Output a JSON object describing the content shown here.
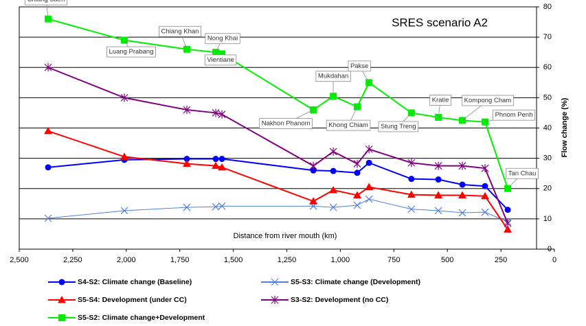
{
  "chart_data": {
    "type": "line",
    "title": "SRES scenario A2",
    "x_label": "Distance from river mouth (km)",
    "y_label": "Flow change (%)",
    "x": [
      2365,
      2009,
      1717,
      1582,
      1553,
      1126,
      1033,
      921,
      866,
      668,
      542,
      430,
      324,
      218
    ],
    "xlim": [
      2500,
      0
    ],
    "xticks": [
      {
        "value": 2500,
        "label": "2,500"
      },
      {
        "value": 2250,
        "label": "2,250"
      },
      {
        "value": 2000,
        "label": "2,000"
      },
      {
        "value": 1750,
        "label": "1,750"
      },
      {
        "value": 1500,
        "label": "1,500"
      },
      {
        "value": 1250,
        "label": "1,250"
      },
      {
        "value": 1000,
        "label": "1,000"
      },
      750,
      500,
      250,
      0
    ],
    "ylim": [
      0,
      80
    ],
    "yticks": [
      0,
      10,
      20,
      30,
      40,
      50,
      60,
      70,
      80
    ],
    "grid": true,
    "station_labels": [
      "Chiang Saen",
      "Luang Prabang",
      "Chiang Khan",
      "Nong Khai",
      "Vientiane",
      "Nakhon Phanom",
      "Mukdahan",
      "Khong Chiam",
      "Pakse",
      "Stung Treng",
      "Kratie",
      "Kompong Cham",
      "Phnom Penh",
      "Tan Chau"
    ],
    "series": [
      {
        "name": "S4-S2: Climate change (Baseline)",
        "color": "#0000ff",
        "marker": "circle",
        "values": [
          27,
          29.5,
          29.8,
          29.8,
          29.8,
          26,
          25.8,
          25.2,
          28.5,
          23.2,
          23,
          21.3,
          20.8,
          13
        ]
      },
      {
        "name": "S5-S3: Climate change (Development)",
        "color": "#4f7fdf",
        "marker": "x",
        "values": [
          10.2,
          12.7,
          13.8,
          14,
          14.2,
          14.2,
          13.8,
          14.5,
          16.5,
          13.2,
          12.7,
          12,
          12.2,
          9
        ]
      },
      {
        "name": "S5-S4: Development (under CC)",
        "color": "#ff0000",
        "marker": "triangle",
        "values": [
          39,
          30.5,
          28.2,
          27.5,
          27,
          15.8,
          19.5,
          17.8,
          20.5,
          18,
          17.8,
          17.8,
          17.5,
          6.5
        ]
      },
      {
        "name": "S3-S2: Development (no CC)",
        "color": "#800080",
        "marker": "star",
        "values": [
          60,
          50,
          46,
          45,
          44.5,
          27.5,
          32.2,
          28.2,
          33,
          28.5,
          27.5,
          27.5,
          26.7,
          8.5
        ]
      },
      {
        "name": "S5-S2: Climate change+Development",
        "color": "#00ee00",
        "marker": "square",
        "values": [
          76,
          69,
          66,
          65,
          64.5,
          46,
          50.5,
          47,
          55,
          45,
          43.5,
          42.5,
          42,
          20
        ]
      }
    ]
  }
}
